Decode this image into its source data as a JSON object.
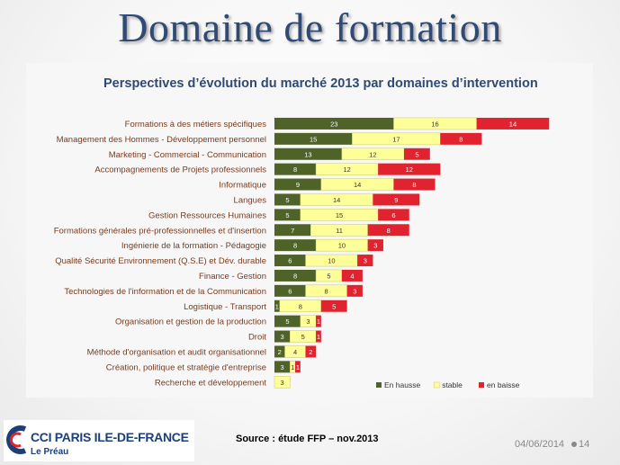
{
  "slide": {
    "title": "Domaine de formation",
    "source": "Source : étude FFP – nov.2013",
    "date": "04/06/2014",
    "page_number": "14"
  },
  "logo": {
    "name": "CCI PARIS ILE-DE-FRANCE",
    "subtitle": "Le Préau"
  },
  "colors": {
    "hausse": "#4f6228",
    "stable": "#ffff99",
    "baisse": "#e0232e",
    "category_text": "#7a3b1e",
    "title_text": "#2f4a73"
  },
  "chart_data": {
    "type": "bar",
    "orientation": "horizontal",
    "stacked": true,
    "title": "Perspectives d’évolution du marché 2013 par domaines d’intervention",
    "categories": [
      "Formations à des métiers spécifiques",
      "Management des Hommes - Développement personnel",
      "Marketing - Commercial - Communication",
      "Accompagnements de Projets professionnels",
      "Informatique",
      "Langues",
      "Gestion Ressources Humaines",
      "Formations générales pré-professionnelles et d'insertion",
      "Ingénierie de la formation - Pédagogie",
      "Qualité Sécurité Environnement (Q.S.E) et Dév. durable",
      "Finance - Gestion",
      "Technologies de l'information et de la Communication",
      "Logistique - Transport",
      "Organisation et gestion de la production",
      "Droit",
      "Méthode d'organisation et audit organisationnel",
      "Création, politique et stratégie d'entreprise",
      "Recherche et développement"
    ],
    "series": [
      {
        "name": "En hausse",
        "values": [
          23,
          15,
          13,
          8,
          9,
          5,
          5,
          7,
          8,
          6,
          8,
          6,
          1,
          5,
          3,
          2,
          3,
          0
        ]
      },
      {
        "name": "stable",
        "values": [
          16,
          17,
          12,
          12,
          14,
          14,
          15,
          11,
          10,
          10,
          5,
          8,
          8,
          3,
          5,
          4,
          1,
          3
        ]
      },
      {
        "name": "en baisse",
        "values": [
          14,
          8,
          5,
          12,
          8,
          9,
          6,
          8,
          3,
          3,
          4,
          3,
          5,
          1,
          1,
          2,
          1,
          0
        ]
      }
    ],
    "xlim": [
      0,
      54
    ],
    "legend": "bottom-right",
    "grid": false
  }
}
